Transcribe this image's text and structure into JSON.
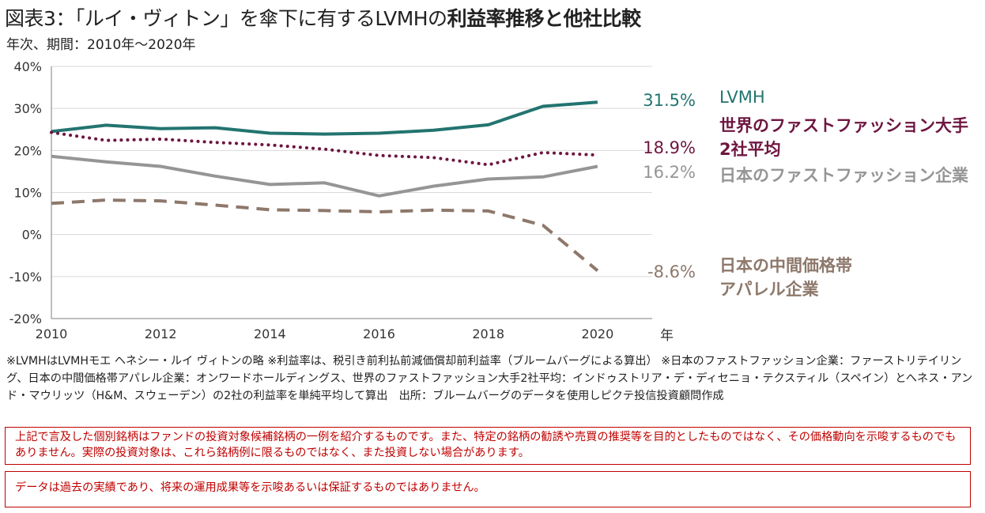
{
  "header": {
    "title_prefix": "図表3：「ルイ・ヴィトン」を傘下に有するLVMHの",
    "title_bold": "利益率推移と他社比較",
    "subtitle": "年次、期間：2010年～2020年"
  },
  "colors": {
    "lvmh": "#237470",
    "fastfashion_global": "#6d1640",
    "fastfashion_japan": "#959595",
    "midprice_japan": "#8d786b",
    "grid": "#d9d9d9",
    "notice": "#c00000"
  },
  "chart_data": {
    "type": "line",
    "x": [
      2010,
      2011,
      2012,
      2013,
      2014,
      2015,
      2016,
      2017,
      2018,
      2019,
      2020
    ],
    "xticks": [
      "2010",
      "2012",
      "2014",
      "2016",
      "2018",
      "2020"
    ],
    "xlabel": "年",
    "yticks": [
      "40%",
      "30%",
      "20%",
      "10%",
      "0%",
      "-10%",
      "-20%"
    ],
    "ylim": [
      -20,
      40
    ],
    "grid": true,
    "series": [
      {
        "key": "lvmh",
        "name": "LVMH",
        "style": "solid",
        "values": [
          24.5,
          26.0,
          25.2,
          25.4,
          24.1,
          23.9,
          24.1,
          24.8,
          26.1,
          30.5,
          31.5
        ],
        "end_label": "31.5%"
      },
      {
        "key": "fastfashion_global",
        "name": "世界のファストファッション大手2社平均",
        "name_lines": [
          "世界のファストファッション大手",
          "2社平均"
        ],
        "style": "dotted",
        "values": [
          24.3,
          22.4,
          22.7,
          21.9,
          21.3,
          20.3,
          18.8,
          18.3,
          16.6,
          19.5,
          18.9
        ],
        "end_label": "18.9%"
      },
      {
        "key": "fastfashion_japan",
        "name": "日本のファストファッション企業",
        "style": "solid",
        "values": [
          18.6,
          17.3,
          16.2,
          13.9,
          11.9,
          12.3,
          9.2,
          11.5,
          13.2,
          13.7,
          16.2
        ],
        "end_label": "16.2%"
      },
      {
        "key": "midprice_japan",
        "name": "日本の中間価格帯アパレル企業",
        "name_lines": [
          "日本の中間価格帯",
          "アパレル企業"
        ],
        "style": "dashed",
        "values": [
          7.4,
          8.2,
          8.0,
          7.0,
          5.9,
          5.7,
          5.4,
          5.8,
          5.6,
          2.2,
          -8.6
        ],
        "end_label": "-8.6%"
      }
    ]
  },
  "notes": "※LVMHはLVMHモエ ヘネシー・ルイ ヴィトンの略 ※利益率は、税引き前利払前減価償却前利益率（ブルームバーグによる算出） ※日本のファストファッション企業：ファーストリテイリング、日本の中間価格帯アパレル企業：オンワードホールディングス、世界のファストファッション大手2社平均：インドゥストリア・デ・ディセニョ・テクスティル（スペイン）とへネス・アンド・マウリッツ（H&M、スウェーデン）の2社の利益率を単純平均して算出　出所：ブルームバーグのデータを使用しピクテ投信投資顧問作成",
  "disclaimer_1": "上記で言及した個別銘柄はファンドの投資対象候補銘柄の一例を紹介するものです。また、特定の銘柄の勧誘や売買の推奨等を目的としたものではなく、その価格動向を示唆するものでもありません。実際の投資対象は、これら銘柄例に限るものではなく、また投資しない場合があります。",
  "disclaimer_2": "データは過去の実績であり、将来の運用成果等を示唆あるいは保証するものではありません。"
}
